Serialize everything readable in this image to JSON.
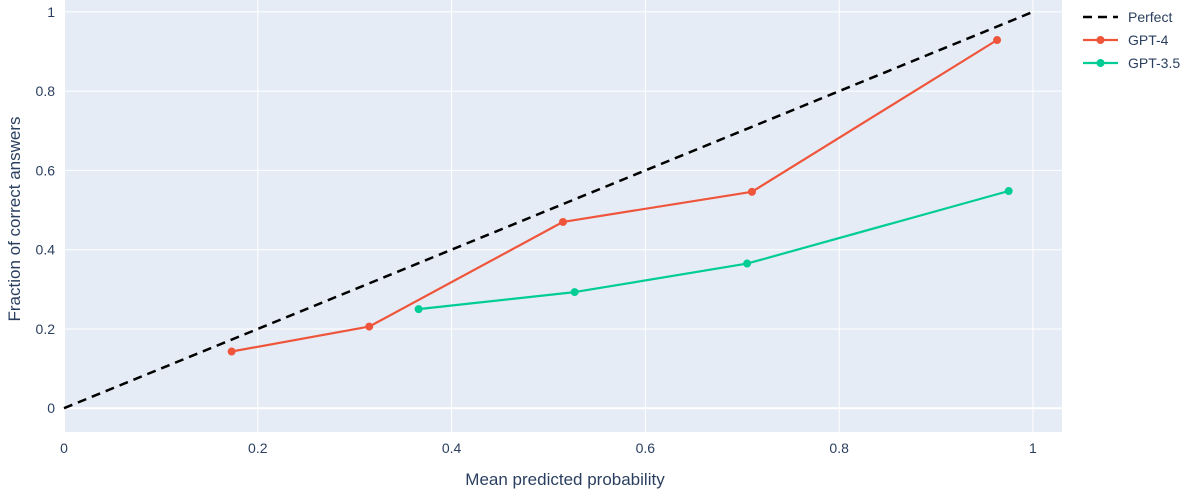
{
  "chart_data": {
    "type": "line",
    "title": "",
    "xlabel": "Mean predicted probability",
    "ylabel": "Fraction of correct answers",
    "xlim": [
      0,
      1.03
    ],
    "ylim": [
      -0.06,
      1.03
    ],
    "x_ticks": [
      0,
      0.2,
      0.4,
      0.6,
      0.8,
      1
    ],
    "x_tick_labels": [
      "0",
      "0.2",
      "0.4",
      "0.6",
      "0.8",
      "1"
    ],
    "y_ticks": [
      0,
      0.2,
      0.4,
      0.6,
      0.8,
      1
    ],
    "y_tick_labels": [
      "0",
      "0.2",
      "0.4",
      "0.6",
      "0.8",
      "1"
    ],
    "grid": true,
    "legend_position": "top-right, outside plot",
    "plot_background": "#e5ecf6",
    "series": [
      {
        "name": "Perfect",
        "style": "dashed",
        "markers": false,
        "color": "#000000",
        "x": [
          0,
          1
        ],
        "y": [
          0,
          1
        ]
      },
      {
        "name": "GPT-4",
        "style": "solid",
        "markers": true,
        "color": "#ef553b",
        "x": [
          0.173,
          0.315,
          0.515,
          0.71,
          0.963
        ],
        "y": [
          0.143,
          0.206,
          0.47,
          0.546,
          0.929
        ]
      },
      {
        "name": "GPT-3.5",
        "style": "solid",
        "markers": true,
        "color": "#00cc96",
        "x": [
          0.366,
          0.527,
          0.705,
          0.975
        ],
        "y": [
          0.25,
          0.293,
          0.365,
          0.548
        ]
      }
    ]
  }
}
